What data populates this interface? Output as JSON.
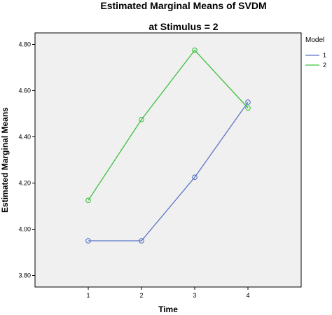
{
  "chart_data": {
    "type": "line",
    "title": "Estimated Marginal Means of SVDM",
    "subtitle": "at Stimulus = 2",
    "xlabel": "Time",
    "ylabel": "Estimated Marginal Means",
    "categories": [
      "1",
      "2",
      "3",
      "4"
    ],
    "ylim": [
      3.75,
      4.85
    ],
    "yticks": [
      "3.80",
      "4.00",
      "4.20",
      "4.40",
      "4.60",
      "4.80"
    ],
    "grid": false,
    "legend": {
      "title": "Model",
      "placement": "right"
    },
    "series": [
      {
        "name": "1",
        "color": "#5b74c6",
        "values": [
          3.95,
          3.95,
          4.225,
          4.55
        ]
      },
      {
        "name": "2",
        "color": "#3fbf3f",
        "values": [
          4.125,
          4.475,
          4.775,
          4.525
        ]
      }
    ],
    "plot_background": "#f0f0f0"
  }
}
